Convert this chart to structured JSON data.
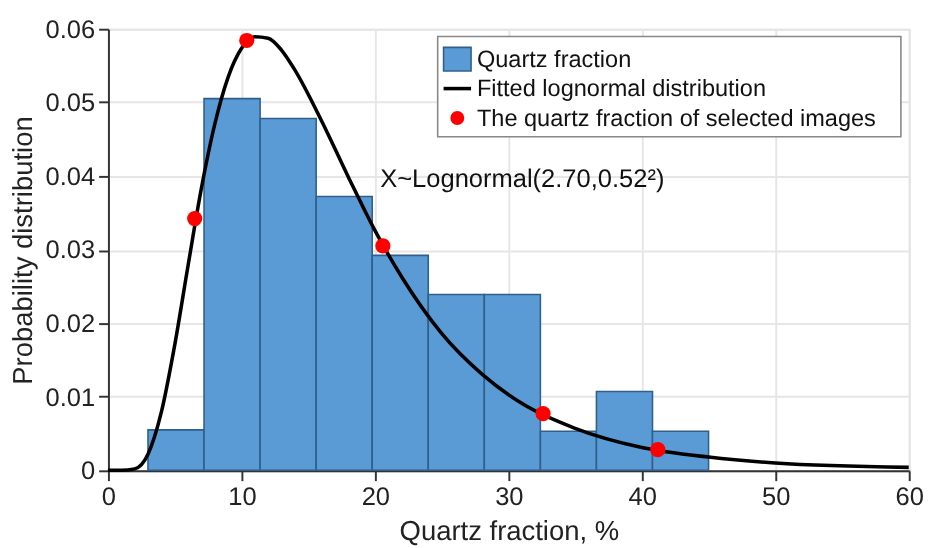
{
  "chart_data": {
    "type": "histogram",
    "xlabel": "Quartz fraction, %",
    "ylabel": "Probability distribution",
    "series": [
      {
        "name": "Quartz fraction",
        "color": "#5b9bd5",
        "bins": [
          3,
          7.2,
          11.4,
          15.6,
          19.8,
          24,
          28.2,
          32.4,
          36.6,
          40.8,
          45
        ],
        "values": [
          0.0055,
          0.0505,
          0.0478,
          0.0372,
          0.0292,
          0.0239,
          0.0239,
          0.0053,
          0.0107,
          0.0053
        ]
      },
      {
        "name": "Fitted lognormal distribution",
        "type": "line",
        "color": "#000000",
        "x": [
          0,
          1,
          2,
          3,
          4,
          5,
          6,
          7,
          8,
          9,
          10,
          11,
          12,
          13,
          14,
          16,
          18,
          20,
          22,
          25,
          28,
          31,
          35,
          40,
          45,
          50,
          60
        ],
        "values": [
          0,
          0,
          0.0002,
          0.0022,
          0.0079,
          0.017,
          0.0278,
          0.0383,
          0.047,
          0.0534,
          0.0573,
          0.0589,
          0.0587,
          0.0571,
          0.0544,
          0.0475,
          0.0399,
          0.0326,
          0.0263,
          0.0186,
          0.0131,
          0.0091,
          0.0057,
          0.0031,
          0.0018,
          0.001,
          0.0004
        ]
      },
      {
        "name": "The quartz fraction of selected images",
        "type": "scatter",
        "color": "#ff0000",
        "marker": "circle",
        "x": [
          6.5,
          10.4,
          20.6,
          32.6,
          41.2
        ],
        "values": [
          0.0342,
          0.0584,
          0.0305,
          0.0077,
          0.0028
        ]
      }
    ],
    "annotations": [
      "X~Lognormal(2.70,0.52²)"
    ],
    "xlim": [
      0,
      60
    ],
    "xticks": [
      0,
      10,
      20,
      30,
      40,
      50,
      60
    ],
    "ylim": [
      0,
      0.06
    ],
    "yticks": [
      0,
      0.01,
      0.02,
      0.03,
      0.04,
      0.05,
      0.06
    ],
    "grid": true,
    "legend": "top right"
  }
}
